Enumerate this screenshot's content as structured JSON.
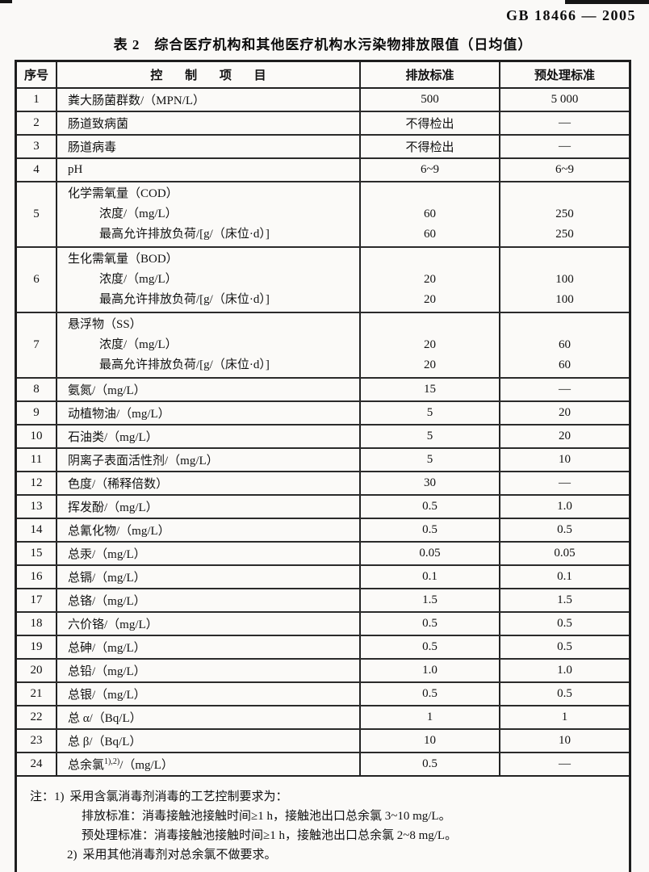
{
  "page": {
    "doc_number": "GB 18466 — 2005",
    "table_title": "表 2　综合医疗机构和其他医疗机构水污染物排放限值（日均值）"
  },
  "table": {
    "headers": {
      "no": "序号",
      "item": "控 制 项 目",
      "discharge": "排放标准",
      "pretreat": "预处理标准"
    },
    "rows": [
      {
        "no": "1",
        "lines": [
          {
            "item": "粪大肠菌群数/（MPN/L）",
            "discharge": "500",
            "pretreat": "5 000"
          }
        ]
      },
      {
        "no": "2",
        "lines": [
          {
            "item": "肠道致病菌",
            "discharge": "不得检出",
            "pretreat": "—"
          }
        ]
      },
      {
        "no": "3",
        "lines": [
          {
            "item": "肠道病毒",
            "discharge": "不得检出",
            "pretreat": "—"
          }
        ]
      },
      {
        "no": "4",
        "lines": [
          {
            "item": "pH",
            "discharge": "6~9",
            "pretreat": "6~9"
          }
        ]
      },
      {
        "no": "5",
        "lines": [
          {
            "item": "化学需氧量（COD）",
            "discharge": "",
            "pretreat": ""
          },
          {
            "item": "浓度/（mg/L）",
            "indent": true,
            "discharge": "60",
            "pretreat": "250"
          },
          {
            "item": "最高允许排放负荷/[g/（床位·d）]",
            "indent": true,
            "discharge": "60",
            "pretreat": "250"
          }
        ]
      },
      {
        "no": "6",
        "lines": [
          {
            "item": "生化需氧量（BOD）",
            "discharge": "",
            "pretreat": ""
          },
          {
            "item": "浓度/（mg/L）",
            "indent": true,
            "discharge": "20",
            "pretreat": "100"
          },
          {
            "item": "最高允许排放负荷/[g/（床位·d）]",
            "indent": true,
            "discharge": "20",
            "pretreat": "100"
          }
        ]
      },
      {
        "no": "7",
        "lines": [
          {
            "item": "悬浮物（SS）",
            "discharge": "",
            "pretreat": ""
          },
          {
            "item": "浓度/（mg/L）",
            "indent": true,
            "discharge": "20",
            "pretreat": "60"
          },
          {
            "item": "最高允许排放负荷/[g/（床位·d）]",
            "indent": true,
            "discharge": "20",
            "pretreat": "60"
          }
        ]
      },
      {
        "no": "8",
        "lines": [
          {
            "item": "氨氮/（mg/L）",
            "discharge": "15",
            "pretreat": "—"
          }
        ]
      },
      {
        "no": "9",
        "lines": [
          {
            "item": "动植物油/（mg/L）",
            "discharge": "5",
            "pretreat": "20"
          }
        ]
      },
      {
        "no": "10",
        "lines": [
          {
            "item": "石油类/（mg/L）",
            "discharge": "5",
            "pretreat": "20"
          }
        ]
      },
      {
        "no": "11",
        "lines": [
          {
            "item": "阴离子表面活性剂/（mg/L）",
            "discharge": "5",
            "pretreat": "10"
          }
        ]
      },
      {
        "no": "12",
        "lines": [
          {
            "item": "色度/（稀释倍数）",
            "discharge": "30",
            "pretreat": "—"
          }
        ]
      },
      {
        "no": "13",
        "lines": [
          {
            "item": "挥发酚/（mg/L）",
            "discharge": "0.5",
            "pretreat": "1.0"
          }
        ]
      },
      {
        "no": "14",
        "lines": [
          {
            "item": "总氰化物/（mg/L）",
            "discharge": "0.5",
            "pretreat": "0.5"
          }
        ]
      },
      {
        "no": "15",
        "lines": [
          {
            "item": "总汞/（mg/L）",
            "discharge": "0.05",
            "pretreat": "0.05"
          }
        ]
      },
      {
        "no": "16",
        "lines": [
          {
            "item": "总镉/（mg/L）",
            "discharge": "0.1",
            "pretreat": "0.1"
          }
        ]
      },
      {
        "no": "17",
        "lines": [
          {
            "item": "总铬/（mg/L）",
            "discharge": "1.5",
            "pretreat": "1.5"
          }
        ]
      },
      {
        "no": "18",
        "lines": [
          {
            "item": "六价铬/（mg/L）",
            "discharge": "0.5",
            "pretreat": "0.5"
          }
        ]
      },
      {
        "no": "19",
        "lines": [
          {
            "item": "总砷/（mg/L）",
            "discharge": "0.5",
            "pretreat": "0.5"
          }
        ]
      },
      {
        "no": "20",
        "lines": [
          {
            "item": "总铅/（mg/L）",
            "discharge": "1.0",
            "pretreat": "1.0"
          }
        ]
      },
      {
        "no": "21",
        "lines": [
          {
            "item": "总银/（mg/L）",
            "discharge": "0.5",
            "pretreat": "0.5"
          }
        ]
      },
      {
        "no": "22",
        "lines": [
          {
            "item": "总 α/（Bq/L）",
            "discharge": "1",
            "pretreat": "1"
          }
        ]
      },
      {
        "no": "23",
        "lines": [
          {
            "item": "总 β/（Bq/L）",
            "discharge": "10",
            "pretreat": "10"
          }
        ]
      },
      {
        "no": "24",
        "lines": [
          {
            "item": "总余氯",
            "item_sup": "1),2)",
            "item_post": "/（mg/L）",
            "discharge": "0.5",
            "pretreat": "—"
          }
        ]
      }
    ]
  },
  "notes": {
    "label": "注：",
    "item1_no": "1)",
    "item1_line1": "采用含氯消毒剂消毒的工艺控制要求为：",
    "item1_line2": "排放标准：消毒接触池接触时间≥1 h，接触池出口总余氯 3~10 mg/L。",
    "item1_line3": "预处理标准：消毒接触池接触时间≥1 h，接触池出口总余氯 2~8 mg/L。",
    "item2_no": "2)",
    "item2_text": "采用其他消毒剂对总余氯不做要求。"
  }
}
